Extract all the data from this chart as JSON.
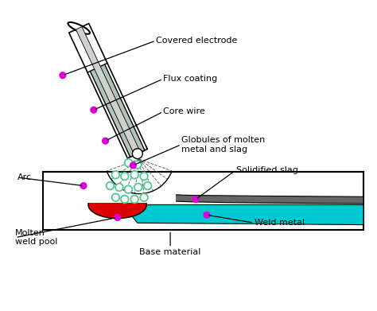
{
  "bg_color": "#ffffff",
  "border_color": "#000000",
  "flux_color": "#b0c4b8",
  "molten_pool_color": "#dd0000",
  "base_color": "#ffffff",
  "weld_metal_color": "#00c8d0",
  "solidified_slag_color": "#666666",
  "globule_edge_color": "#50c890",
  "dot_color": "#dd00dd",
  "text_color": "#000000",
  "labels": {
    "covered_electrode": "Covered electrode",
    "flux_coating": "Flux coating",
    "core_wire": "Core wire",
    "globules": "Globules of molten\nmetal and slag",
    "arc": "Arc",
    "solidified_slag": "Solidified slag",
    "molten_weld_pool": "Molten\nweld pool",
    "base_material": "Base material",
    "weld_metal": "Weld metal"
  },
  "figsize": [
    4.74,
    3.91
  ],
  "dpi": 100
}
